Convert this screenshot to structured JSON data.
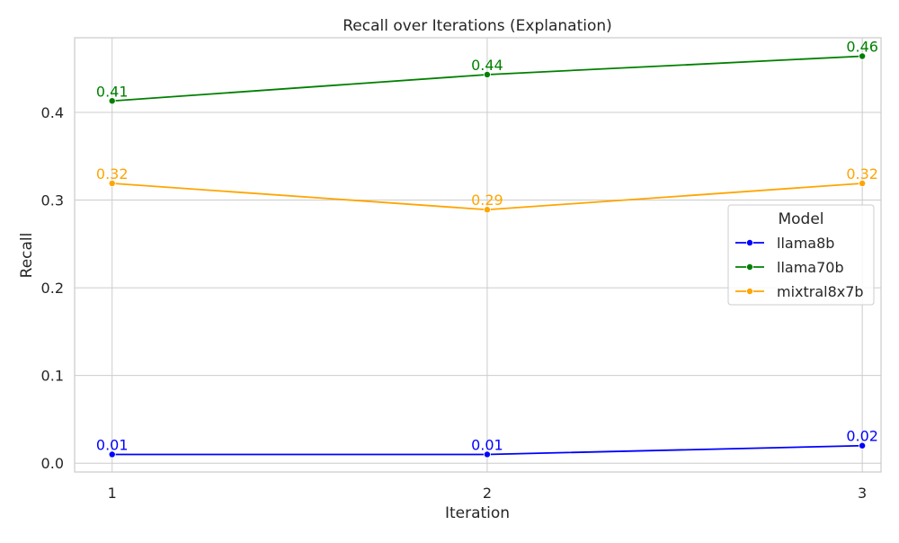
{
  "chart_data": {
    "type": "line",
    "title": "Recall over Iterations (Explanation)",
    "xlabel": "Iteration",
    "ylabel": "Recall",
    "x": [
      1,
      2,
      3
    ],
    "x_ticks": [
      "1",
      "2",
      "3"
    ],
    "xlim": [
      0.9,
      3.05
    ],
    "ylim": [
      -0.01,
      0.485
    ],
    "y_ticks": [
      0.0,
      0.1,
      0.2,
      0.3,
      0.4
    ],
    "y_tick_labels": [
      "0.0",
      "0.1",
      "0.2",
      "0.3",
      "0.4"
    ],
    "grid": true,
    "legend": {
      "title": "Model",
      "position": "center-right"
    },
    "series": [
      {
        "name": "llama8b",
        "color": "#0000ff",
        "values": [
          0.01,
          0.01,
          0.02
        ],
        "labels": [
          "0.01",
          "0.01",
          "0.02"
        ]
      },
      {
        "name": "llama70b",
        "color": "#008000",
        "values": [
          0.413,
          0.443,
          0.464
        ],
        "labels": [
          "0.41",
          "0.44",
          "0.46"
        ]
      },
      {
        "name": "mixtral8x7b",
        "color": "#ffa500",
        "values": [
          0.319,
          0.289,
          0.319
        ],
        "labels": [
          "0.32",
          "0.29",
          "0.32"
        ]
      }
    ]
  }
}
